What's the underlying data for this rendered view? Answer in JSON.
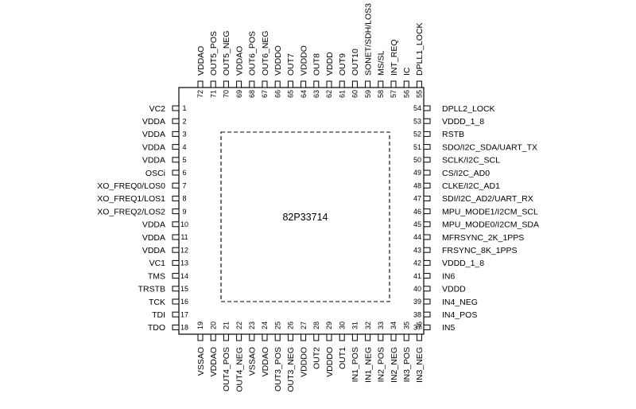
{
  "part_number": "82P33714",
  "pins": {
    "left": [
      {
        "num": "1",
        "name": "VC2"
      },
      {
        "num": "2",
        "name": "VDDA"
      },
      {
        "num": "3",
        "name": "VDDA"
      },
      {
        "num": "4",
        "name": "VDDA"
      },
      {
        "num": "5",
        "name": "VDDA"
      },
      {
        "num": "6",
        "name": "OSCi"
      },
      {
        "num": "7",
        "name": "XO_FREQ0/LOS0"
      },
      {
        "num": "8",
        "name": "XO_FREQ1/LOS1"
      },
      {
        "num": "9",
        "name": "XO_FREQ2/LOS2"
      },
      {
        "num": "10",
        "name": "VDDA"
      },
      {
        "num": "11",
        "name": "VDDA"
      },
      {
        "num": "12",
        "name": "VDDA"
      },
      {
        "num": "13",
        "name": "VC1"
      },
      {
        "num": "14",
        "name": "TMS"
      },
      {
        "num": "15",
        "name": "TRSTB"
      },
      {
        "num": "16",
        "name": "TCK"
      },
      {
        "num": "17",
        "name": "TDI"
      },
      {
        "num": "18",
        "name": "TDO"
      }
    ],
    "bottom": [
      {
        "num": "19",
        "name": "VSSAO"
      },
      {
        "num": "20",
        "name": "VDDAO"
      },
      {
        "num": "21",
        "name": "OUT4_POS"
      },
      {
        "num": "22",
        "name": "OUT4_NEG"
      },
      {
        "num": "23",
        "name": "VSSAO"
      },
      {
        "num": "24",
        "name": "VDDAO"
      },
      {
        "num": "25",
        "name": "OUT3_POS"
      },
      {
        "num": "26",
        "name": "OUT3_NEG"
      },
      {
        "num": "27",
        "name": "VDDDO"
      },
      {
        "num": "28",
        "name": "OUT2"
      },
      {
        "num": "29",
        "name": "VDDDO"
      },
      {
        "num": "30",
        "name": "OUT1"
      },
      {
        "num": "31",
        "name": "IN1_POS"
      },
      {
        "num": "32",
        "name": "IN1_NEG"
      },
      {
        "num": "33",
        "name": "IN2_POS"
      },
      {
        "num": "34",
        "name": "IN2_NEG"
      },
      {
        "num": "35",
        "name": "IN3_POS"
      },
      {
        "num": "36",
        "name": "IN3_NEG"
      }
    ],
    "right": [
      {
        "num": "37",
        "name": "IN5"
      },
      {
        "num": "38",
        "name": "IN4_POS"
      },
      {
        "num": "39",
        "name": "IN4_NEG"
      },
      {
        "num": "40",
        "name": "VDDD"
      },
      {
        "num": "41",
        "name": "IN6"
      },
      {
        "num": "42",
        "name": "VDDD_1_8"
      },
      {
        "num": "43",
        "name": "FRSYNC_8K_1PPS"
      },
      {
        "num": "44",
        "name": "MFRSYNC_2K_1PPS"
      },
      {
        "num": "45",
        "name": "MPU_MODE0/I2CM_SDA"
      },
      {
        "num": "46",
        "name": "MPU_MODE1/I2CM_SCL"
      },
      {
        "num": "47",
        "name": "SDI/I2C_AD2/UART_RX"
      },
      {
        "num": "48",
        "name": "CLKE/I2C_AD1"
      },
      {
        "num": "49",
        "name": "CS/I2C_AD0"
      },
      {
        "num": "50",
        "name": "SCLK/I2C_SCL"
      },
      {
        "num": "51",
        "name": "SDO/I2C_SDA/UART_TX"
      },
      {
        "num": "52",
        "name": "RSTB"
      },
      {
        "num": "53",
        "name": "VDDD_1_8"
      },
      {
        "num": "54",
        "name": "DPLL2_LOCK"
      }
    ],
    "top": [
      {
        "num": "55",
        "name": "DPLL1_LOCK"
      },
      {
        "num": "56",
        "name": "IC"
      },
      {
        "num": "57",
        "name": "INT_REQ"
      },
      {
        "num": "58",
        "name": "MS/SL"
      },
      {
        "num": "59",
        "name": "SONET/SDH/LOS3"
      },
      {
        "num": "60",
        "name": "OUT10"
      },
      {
        "num": "61",
        "name": "OUT9"
      },
      {
        "num": "62",
        "name": "VDDD"
      },
      {
        "num": "63",
        "name": "OUT8"
      },
      {
        "num": "64",
        "name": "VDDDO"
      },
      {
        "num": "65",
        "name": "OUT7"
      },
      {
        "num": "66",
        "name": "VDDDO"
      },
      {
        "num": "67",
        "name": "OUT6_NEG"
      },
      {
        "num": "68",
        "name": "OUT6_POS"
      },
      {
        "num": "69",
        "name": "VDDAO"
      },
      {
        "num": "70",
        "name": "OUT5_NEG"
      },
      {
        "num": "71",
        "name": "OUT5_POS"
      },
      {
        "num": "72",
        "name": "VDDAO"
      }
    ]
  }
}
